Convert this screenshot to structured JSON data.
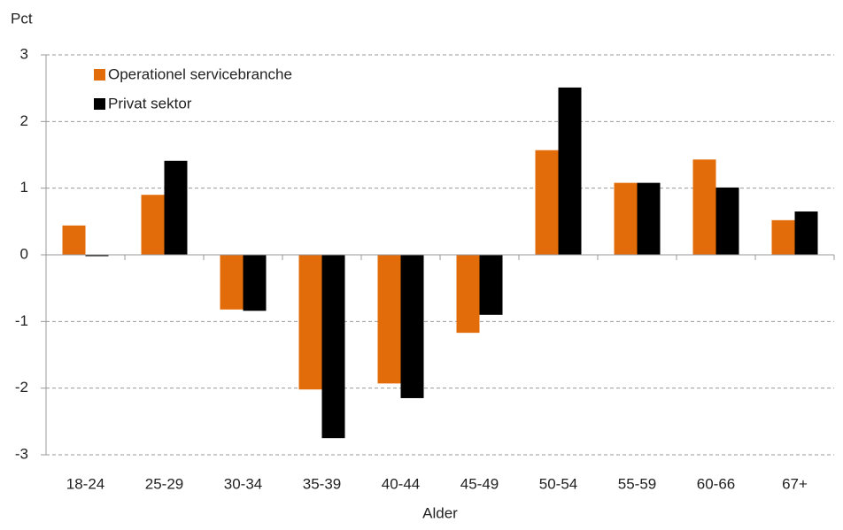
{
  "chart_data": {
    "type": "bar",
    "y_label": "Pct",
    "x_label": "Alder",
    "categories": [
      "18-24",
      "25-29",
      "30-34",
      "35-39",
      "40-44",
      "45-49",
      "50-54",
      "55-59",
      "60-66",
      "67+"
    ],
    "series": [
      {
        "name": "Operationel servicebranche",
        "color": "#e36c0a",
        "values": [
          0.44,
          0.9,
          -0.82,
          -2.02,
          -1.93,
          -1.17,
          1.57,
          1.08,
          1.43,
          0.52
        ]
      },
      {
        "name": "Privat sektor",
        "color": "#000000",
        "values": [
          -0.02,
          1.41,
          -0.84,
          -2.75,
          -2.15,
          -0.9,
          2.51,
          1.08,
          1.01,
          0.65
        ]
      }
    ],
    "ylim": [
      -3,
      3
    ],
    "yticks": [
      -3,
      -2,
      -1,
      0,
      1,
      2,
      3
    ],
    "grid": true,
    "legend": "top-left"
  }
}
